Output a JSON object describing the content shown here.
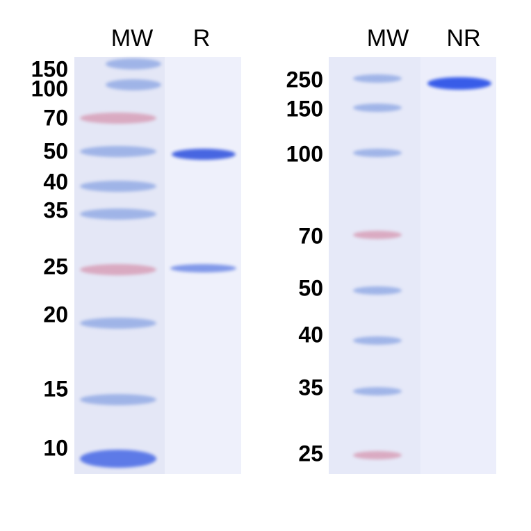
{
  "left_panel": {
    "lanes": [
      "MW",
      "R"
    ],
    "markers": [
      "150",
      "100",
      "70",
      "50",
      "40",
      "35",
      "25",
      "20",
      "15",
      "10"
    ]
  },
  "right_panel": {
    "lanes": [
      "MW",
      "NR"
    ],
    "markers": [
      "250",
      "150",
      "100",
      "70",
      "50",
      "40",
      "35",
      "25"
    ]
  },
  "colors": {
    "gel": "#e9ebf8",
    "blue_band": "#3f5fe0",
    "marker_blue": "#8fa8e4",
    "marker_pink": "#d79bb4"
  }
}
